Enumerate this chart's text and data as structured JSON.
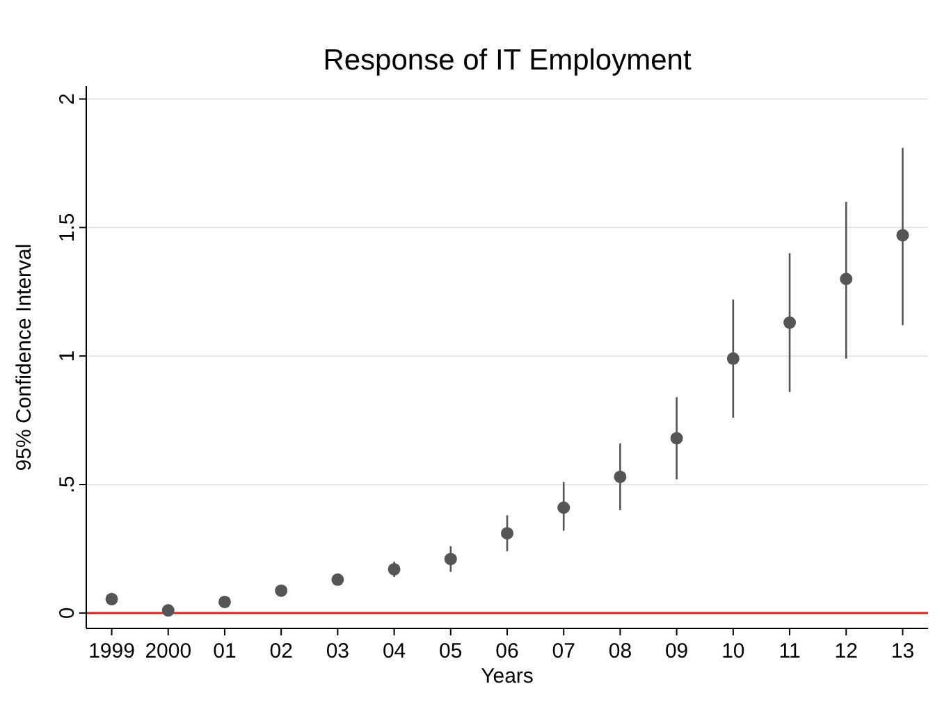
{
  "chart_data": {
    "type": "scatter",
    "title": "Response of IT Employment",
    "xlabel": "Years",
    "ylabel": "95% Confidence Interval",
    "categories": [
      "1999",
      "2000",
      "01",
      "02",
      "03",
      "04",
      "05",
      "06",
      "07",
      "08",
      "09",
      "10",
      "11",
      "12",
      "13"
    ],
    "values": [
      0.054,
      0.01,
      0.043,
      0.087,
      0.13,
      0.17,
      0.21,
      0.31,
      0.41,
      0.53,
      0.68,
      0.99,
      1.13,
      1.3,
      1.47
    ],
    "errors": [
      null,
      null,
      null,
      null,
      [
        0.11,
        0.15
      ],
      [
        0.14,
        0.2
      ],
      [
        0.16,
        0.26
      ],
      [
        0.24,
        0.38
      ],
      [
        0.32,
        0.51
      ],
      [
        0.4,
        0.66
      ],
      [
        0.52,
        0.84
      ],
      [
        0.76,
        1.22
      ],
      [
        0.86,
        1.4
      ],
      [
        0.99,
        1.6
      ],
      [
        1.12,
        1.81
      ]
    ],
    "color": "#555555",
    "marker": "circle",
    "ylim": [
      -0.06,
      2.05
    ],
    "yticks": [
      0,
      {
        "value": 0.5,
        "label": ".5"
      },
      1,
      1.5,
      2
    ],
    "grid": "y",
    "ref_lines": [
      {
        "axis": "y",
        "value": 0,
        "color": "#e8291c"
      }
    ]
  }
}
